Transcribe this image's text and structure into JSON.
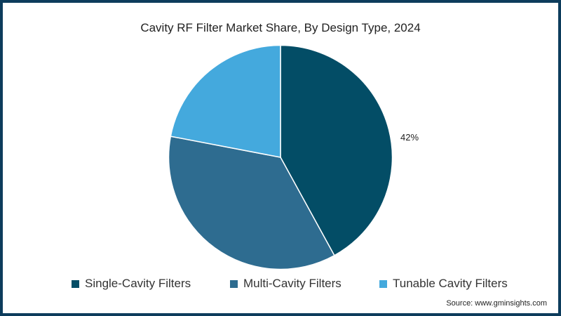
{
  "chart_data": {
    "type": "pie",
    "title": "Cavity RF Filter Market Share, By Design Type, 2024",
    "categories": [
      "Single-Cavity Filters",
      "Multi-Cavity Filters",
      "Tunable Cavity Filters"
    ],
    "values": [
      42,
      36,
      22
    ],
    "labels_shown": [
      "42%",
      "",
      ""
    ],
    "colors": [
      "#034d66",
      "#2e6c90",
      "#44a9dd"
    ],
    "legend_position": "bottom",
    "start_angle": "12 o'clock, clockwise"
  },
  "title": "Cavity RF Filter Market Share, By Design Type, 2024",
  "data_label": "42%",
  "legend": [
    {
      "label": "Single-Cavity Filters",
      "color": "#034d66"
    },
    {
      "label": "Multi-Cavity Filters",
      "color": "#2e6c90"
    },
    {
      "label": "Tunable Cavity Filters",
      "color": "#44a9dd"
    }
  ],
  "source": "Source: www.gminsights.com",
  "colors": {
    "border": "#0d3c5c"
  }
}
